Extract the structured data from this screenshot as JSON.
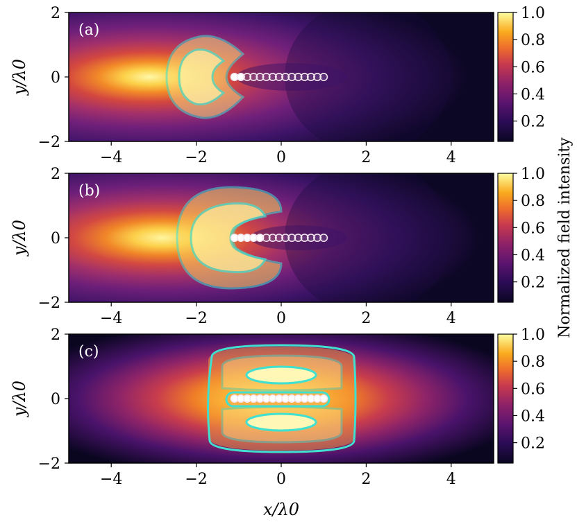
{
  "figure": {
    "xlabel": "x/λ0",
    "ylabel": "y/λ0",
    "colorbar_label": "Normalized field intensity"
  },
  "chart_data": {
    "type": "heatmap",
    "xlim": [
      -5,
      5
    ],
    "ylim": [
      -2,
      2
    ],
    "xticks": [
      -4,
      -2,
      0,
      2,
      4
    ],
    "yticks": [
      -2,
      0,
      2
    ],
    "colorbar_ticks": [
      0.2,
      0.4,
      0.6,
      0.8,
      1.0
    ],
    "colorbar_range": [
      0.05,
      1.0
    ],
    "colormap": "inferno",
    "contour_color": "#40e0d0",
    "panels": [
      {
        "label": "(a)",
        "field_center": [
          -1.8,
          0
        ],
        "emitters_x": [
          -1.1,
          -0.95,
          -0.8,
          -0.65,
          -0.5,
          -0.35,
          -0.2,
          -0.05,
          0.1,
          0.25,
          0.4,
          0.55,
          0.7,
          0.85,
          1.0
        ],
        "bright_emitters": 2
      },
      {
        "label": "(b)",
        "field_center": [
          -1.6,
          0
        ],
        "emitters_x": [
          -1.1,
          -0.95,
          -0.8,
          -0.65,
          -0.5,
          -0.35,
          -0.2,
          -0.05,
          0.1,
          0.25,
          0.4,
          0.55,
          0.7,
          0.85,
          1.0
        ],
        "bright_emitters": 5
      },
      {
        "label": "(c)",
        "field_center": [
          -0.2,
          0
        ],
        "emitters_x": [
          -1.1,
          -0.95,
          -0.8,
          -0.65,
          -0.5,
          -0.35,
          -0.2,
          -0.05,
          0.1,
          0.25,
          0.4,
          0.55,
          0.7,
          0.85,
          1.0
        ],
        "bright_emitters": 15
      }
    ]
  }
}
